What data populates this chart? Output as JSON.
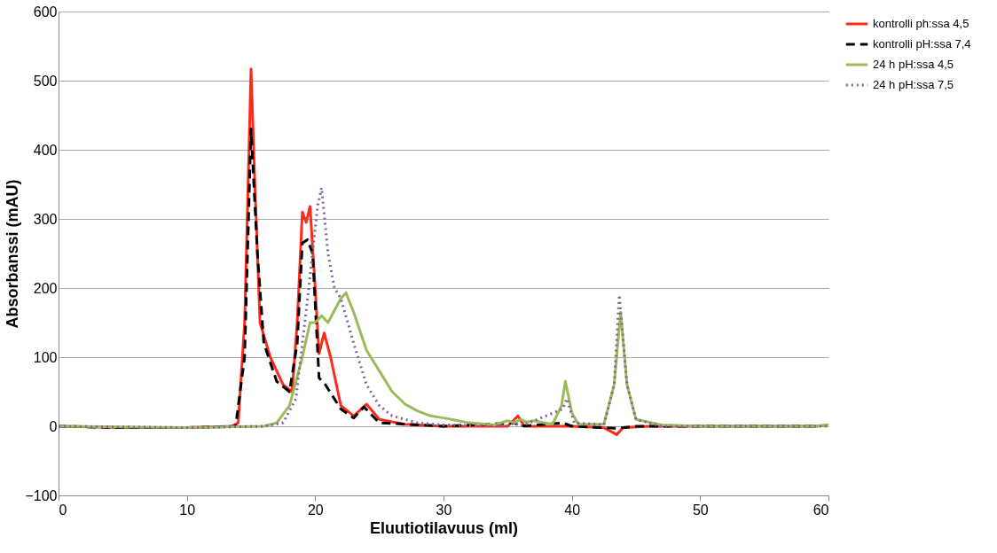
{
  "chart_data": {
    "type": "line",
    "xlabel": "Eluutiotilavuus (ml)",
    "ylabel": "Absorbanssi (mAU)",
    "xlim": [
      0,
      60
    ],
    "xticks": [
      0,
      10,
      20,
      30,
      40,
      50,
      60
    ],
    "ylim": [
      -100,
      600
    ],
    "yticks": [
      -100,
      0,
      100,
      200,
      300,
      400,
      500,
      600
    ],
    "grid": "y",
    "legend": "right",
    "marker": "none",
    "series": [
      {
        "name": "kontrolli ph:ssa 4,5",
        "color": "#ff2a1a",
        "line_style": "solid",
        "x": [
          0,
          5,
          10,
          13.5,
          14,
          14.5,
          15.0,
          15.3,
          15.7,
          16.5,
          17.5,
          18.2,
          18.6,
          19.0,
          19.3,
          19.6,
          20.0,
          20.3,
          20.7,
          21.2,
          22,
          23,
          24,
          25,
          27,
          30,
          35,
          35.8,
          36.3,
          39.5,
          40,
          42.5,
          43.5,
          44,
          46,
          59,
          60
        ],
        "values": [
          0,
          -2,
          -2,
          0,
          5,
          150,
          517,
          350,
          150,
          100,
          60,
          50,
          150,
          310,
          295,
          318,
          200,
          105,
          135,
          100,
          30,
          15,
          32,
          10,
          3,
          0,
          0,
          15,
          0,
          0,
          0,
          -2,
          -12,
          -2,
          0,
          0,
          2
        ]
      },
      {
        "name": "kontrolli pH:ssa 7,4",
        "color": "#000000",
        "line_style": "dashed",
        "x": [
          0,
          5,
          10,
          13.8,
          14.5,
          15,
          15.5,
          16,
          17,
          18,
          18.6,
          19,
          19.4,
          19.8,
          20.3,
          20.8,
          22,
          23,
          23.8,
          25,
          30,
          35.5,
          36,
          39.3,
          40,
          43.5,
          45,
          59
        ],
        "values": [
          0,
          -2,
          -2,
          0,
          100,
          430,
          250,
          120,
          65,
          50,
          120,
          265,
          270,
          250,
          70,
          60,
          25,
          12,
          28,
          5,
          0,
          5,
          0,
          5,
          0,
          -3,
          0,
          0
        ]
      },
      {
        "name": "24 h pH:ssa 4,5",
        "color": "#9bbb59",
        "line_style": "solid",
        "x": [
          0,
          10,
          16,
          17,
          18,
          19,
          19.6,
          20,
          20.5,
          21,
          22,
          22.4,
          23,
          24,
          25,
          26,
          27,
          28,
          29,
          30,
          32,
          34,
          35,
          35.5,
          36,
          36.5,
          37,
          38.5,
          39.2,
          39.5,
          40,
          40.5,
          42.5,
          43.3,
          43.8,
          44.3,
          45,
          47,
          50,
          59,
          60
        ],
        "values": [
          0,
          -2,
          0,
          5,
          30,
          100,
          150,
          150,
          160,
          150,
          185,
          193,
          165,
          110,
          80,
          50,
          32,
          22,
          15,
          12,
          5,
          2,
          8,
          5,
          10,
          6,
          8,
          3,
          30,
          65,
          20,
          3,
          3,
          60,
          165,
          60,
          10,
          2,
          0,
          0,
          2
        ]
      },
      {
        "name": "24 h pH:ssa 7,5",
        "color": "#8064a2",
        "line_style": "dotted",
        "x": [
          0,
          10,
          16,
          17.5,
          18.5,
          19.5,
          20.2,
          20.5,
          21,
          21.5,
          22,
          23,
          24,
          25,
          26,
          28,
          30,
          35,
          35.5,
          36,
          39.3,
          39.6,
          40.2,
          42.5,
          43.3,
          43.7,
          44.3,
          45,
          47,
          60
        ],
        "values": [
          0,
          -2,
          0,
          5,
          40,
          200,
          320,
          345,
          250,
          200,
          185,
          120,
          60,
          30,
          15,
          5,
          2,
          0,
          5,
          0,
          25,
          40,
          5,
          2,
          60,
          190,
          60,
          10,
          0,
          0
        ]
      }
    ]
  }
}
